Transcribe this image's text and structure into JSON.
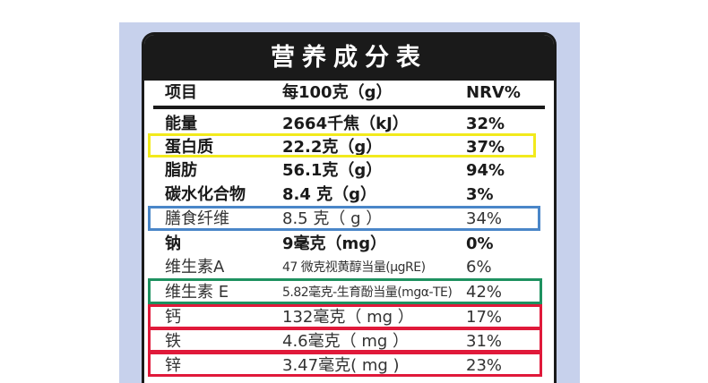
{
  "table": {
    "title": "营养成分表",
    "header": {
      "item": "项目",
      "per": "每100克（g）",
      "nrv": "NRV%"
    },
    "rows": [
      {
        "name": "能量",
        "amount": "2664千焦（kJ）",
        "nrv": "32%"
      },
      {
        "name": "蛋白质",
        "amount": "22.2克（g）",
        "nrv": "37%"
      },
      {
        "name": "脂肪",
        "amount": "56.1克（g）",
        "nrv": "94%"
      },
      {
        "name": "碳水化合物",
        "amount": "8.4 克（g）",
        "nrv": "3%"
      },
      {
        "name": "膳食纤维",
        "amount": "8.5 克（ g ）",
        "nrv": "34%"
      },
      {
        "name": "钠",
        "amount": "9毫克（mg）",
        "nrv": "0%"
      },
      {
        "name": "维生素A",
        "amount": "47 微克视黄醇当量(μgRE)",
        "nrv": "6%"
      },
      {
        "name": "维生素 E",
        "amount": "5.82毫克-生育酚当量(mgα-TE)",
        "nrv": "42%"
      },
      {
        "name": "钙",
        "amount": "132毫克（ mg ）",
        "nrv": "17%"
      },
      {
        "name": "铁",
        "amount": "4.6毫克（ mg ）",
        "nrv": "31%"
      },
      {
        "name": "锌",
        "amount": "3.47毫克( mg )",
        "nrv": "23%"
      }
    ]
  },
  "highlight_colors": {
    "yellow": "#f2ea1c",
    "blue": "#4a86c8",
    "green": "#1e9160",
    "red": "#e0193a"
  }
}
